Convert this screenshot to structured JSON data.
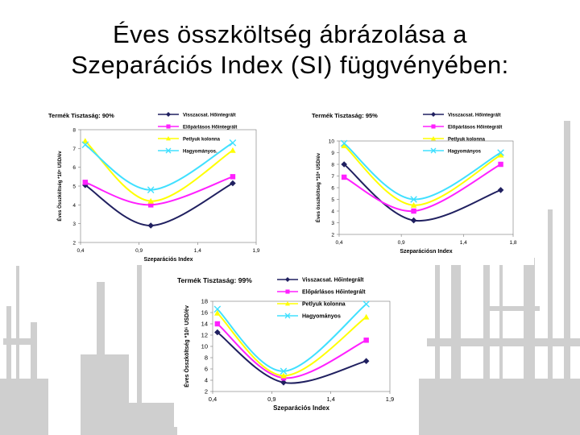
{
  "slide": {
    "title_line1": "Éves összköltség ábrázolása a",
    "title_line2": "Szeparációs Index (SI) függvényében:"
  },
  "colors": {
    "series": [
      "#202060",
      "#ff20ff",
      "#ffff00",
      "#40e0ff"
    ],
    "background_art": "#c8c8c8"
  },
  "chart_data": [
    {
      "type": "line",
      "title": "Termék Tisztaság: 90%",
      "xlabel": "Szeparációs Index",
      "ylabel": "Éves Összköltség *10⁶ USD/év",
      "xlim": [
        0.4,
        1.9
      ],
      "ylim": [
        2,
        8
      ],
      "xticks": [
        "0,4",
        "0,9",
        "1,4",
        "1,9"
      ],
      "yticks": [
        "2",
        "3",
        "4",
        "5",
        "6",
        "7",
        "8"
      ],
      "legend_position": "top-right",
      "series": [
        {
          "name": "Visszacsat. Hőintegrált",
          "marker": "diamond",
          "x": [
            0.44,
            1.0,
            1.7
          ],
          "y": [
            5.05,
            2.9,
            5.15
          ]
        },
        {
          "name": "Előpárlásos Hőintegrált",
          "marker": "square",
          "x": [
            0.44,
            1.0,
            1.7
          ],
          "y": [
            5.2,
            4.0,
            5.5
          ]
        },
        {
          "name": "Petlyuk kolonna",
          "marker": "triangle",
          "x": [
            0.44,
            1.0,
            1.7
          ],
          "y": [
            7.4,
            4.2,
            6.9
          ]
        },
        {
          "name": "Hagyományos.",
          "marker": "x",
          "x": [
            0.44,
            1.0,
            1.7
          ],
          "y": [
            7.2,
            4.8,
            7.3
          ]
        }
      ]
    },
    {
      "type": "line",
      "title": "Termék Tisztaság: 95%",
      "xlabel": "Szeparációsn Index",
      "ylabel": "Éves összköltség *10⁶ USD/év",
      "xlim": [
        0.4,
        1.8
      ],
      "ylim": [
        2,
        10
      ],
      "xticks": [
        "0,4",
        "0,9",
        "1,4",
        "1,8"
      ],
      "yticks": [
        "2",
        "3",
        "4",
        "5",
        "6",
        "7",
        "8",
        "9",
        "10"
      ],
      "legend_position": "top-right",
      "series": [
        {
          "name": "Visszacsat. Hőintegrált",
          "marker": "diamond",
          "x": [
            0.44,
            1.0,
            1.7
          ],
          "y": [
            8.0,
            3.2,
            5.8
          ]
        },
        {
          "name": "Előpárlásos Hőintegrált",
          "marker": "square",
          "x": [
            0.44,
            1.0,
            1.7
          ],
          "y": [
            6.9,
            4.0,
            8.0
          ]
        },
        {
          "name": "Petlyuk kolonna",
          "marker": "triangle",
          "x": [
            0.44,
            1.0,
            1.7
          ],
          "y": [
            9.6,
            4.5,
            8.8
          ]
        },
        {
          "name": "Hagyományos",
          "marker": "x",
          "x": [
            0.44,
            1.0,
            1.7
          ],
          "y": [
            9.8,
            5.0,
            9.0
          ]
        }
      ]
    },
    {
      "type": "line",
      "title": "Termék Tisztaság: 99%",
      "xlabel": "Szeparációs Index",
      "ylabel": "Éves Összköltség *10⁶ USD/év",
      "xlim": [
        0.4,
        1.9
      ],
      "ylim": [
        2,
        18
      ],
      "xticks": [
        "0,4",
        "0,9",
        "1,4",
        "1,9"
      ],
      "yticks": [
        "2",
        "4",
        "6",
        "8",
        "10",
        "12",
        "14",
        "16",
        "18"
      ],
      "legend_position": "top-right",
      "series": [
        {
          "name": "Visszacsat. Hőintegrált",
          "marker": "diamond",
          "x": [
            0.44,
            1.0,
            1.7
          ],
          "y": [
            12.5,
            3.6,
            7.4
          ]
        },
        {
          "name": "Előpárlásos Hőintegrált",
          "marker": "square",
          "x": [
            0.44,
            1.0,
            1.7
          ],
          "y": [
            14.0,
            4.4,
            11.1
          ]
        },
        {
          "name": "Petlyuk kolonna",
          "marker": "triangle",
          "x": [
            0.44,
            1.0,
            1.7
          ],
          "y": [
            15.9,
            4.8,
            15.2
          ]
        },
        {
          "name": "Hagyományos",
          "marker": "x",
          "x": [
            0.44,
            1.0,
            1.7
          ],
          "y": [
            16.6,
            5.6,
            17.5
          ]
        }
      ]
    }
  ]
}
